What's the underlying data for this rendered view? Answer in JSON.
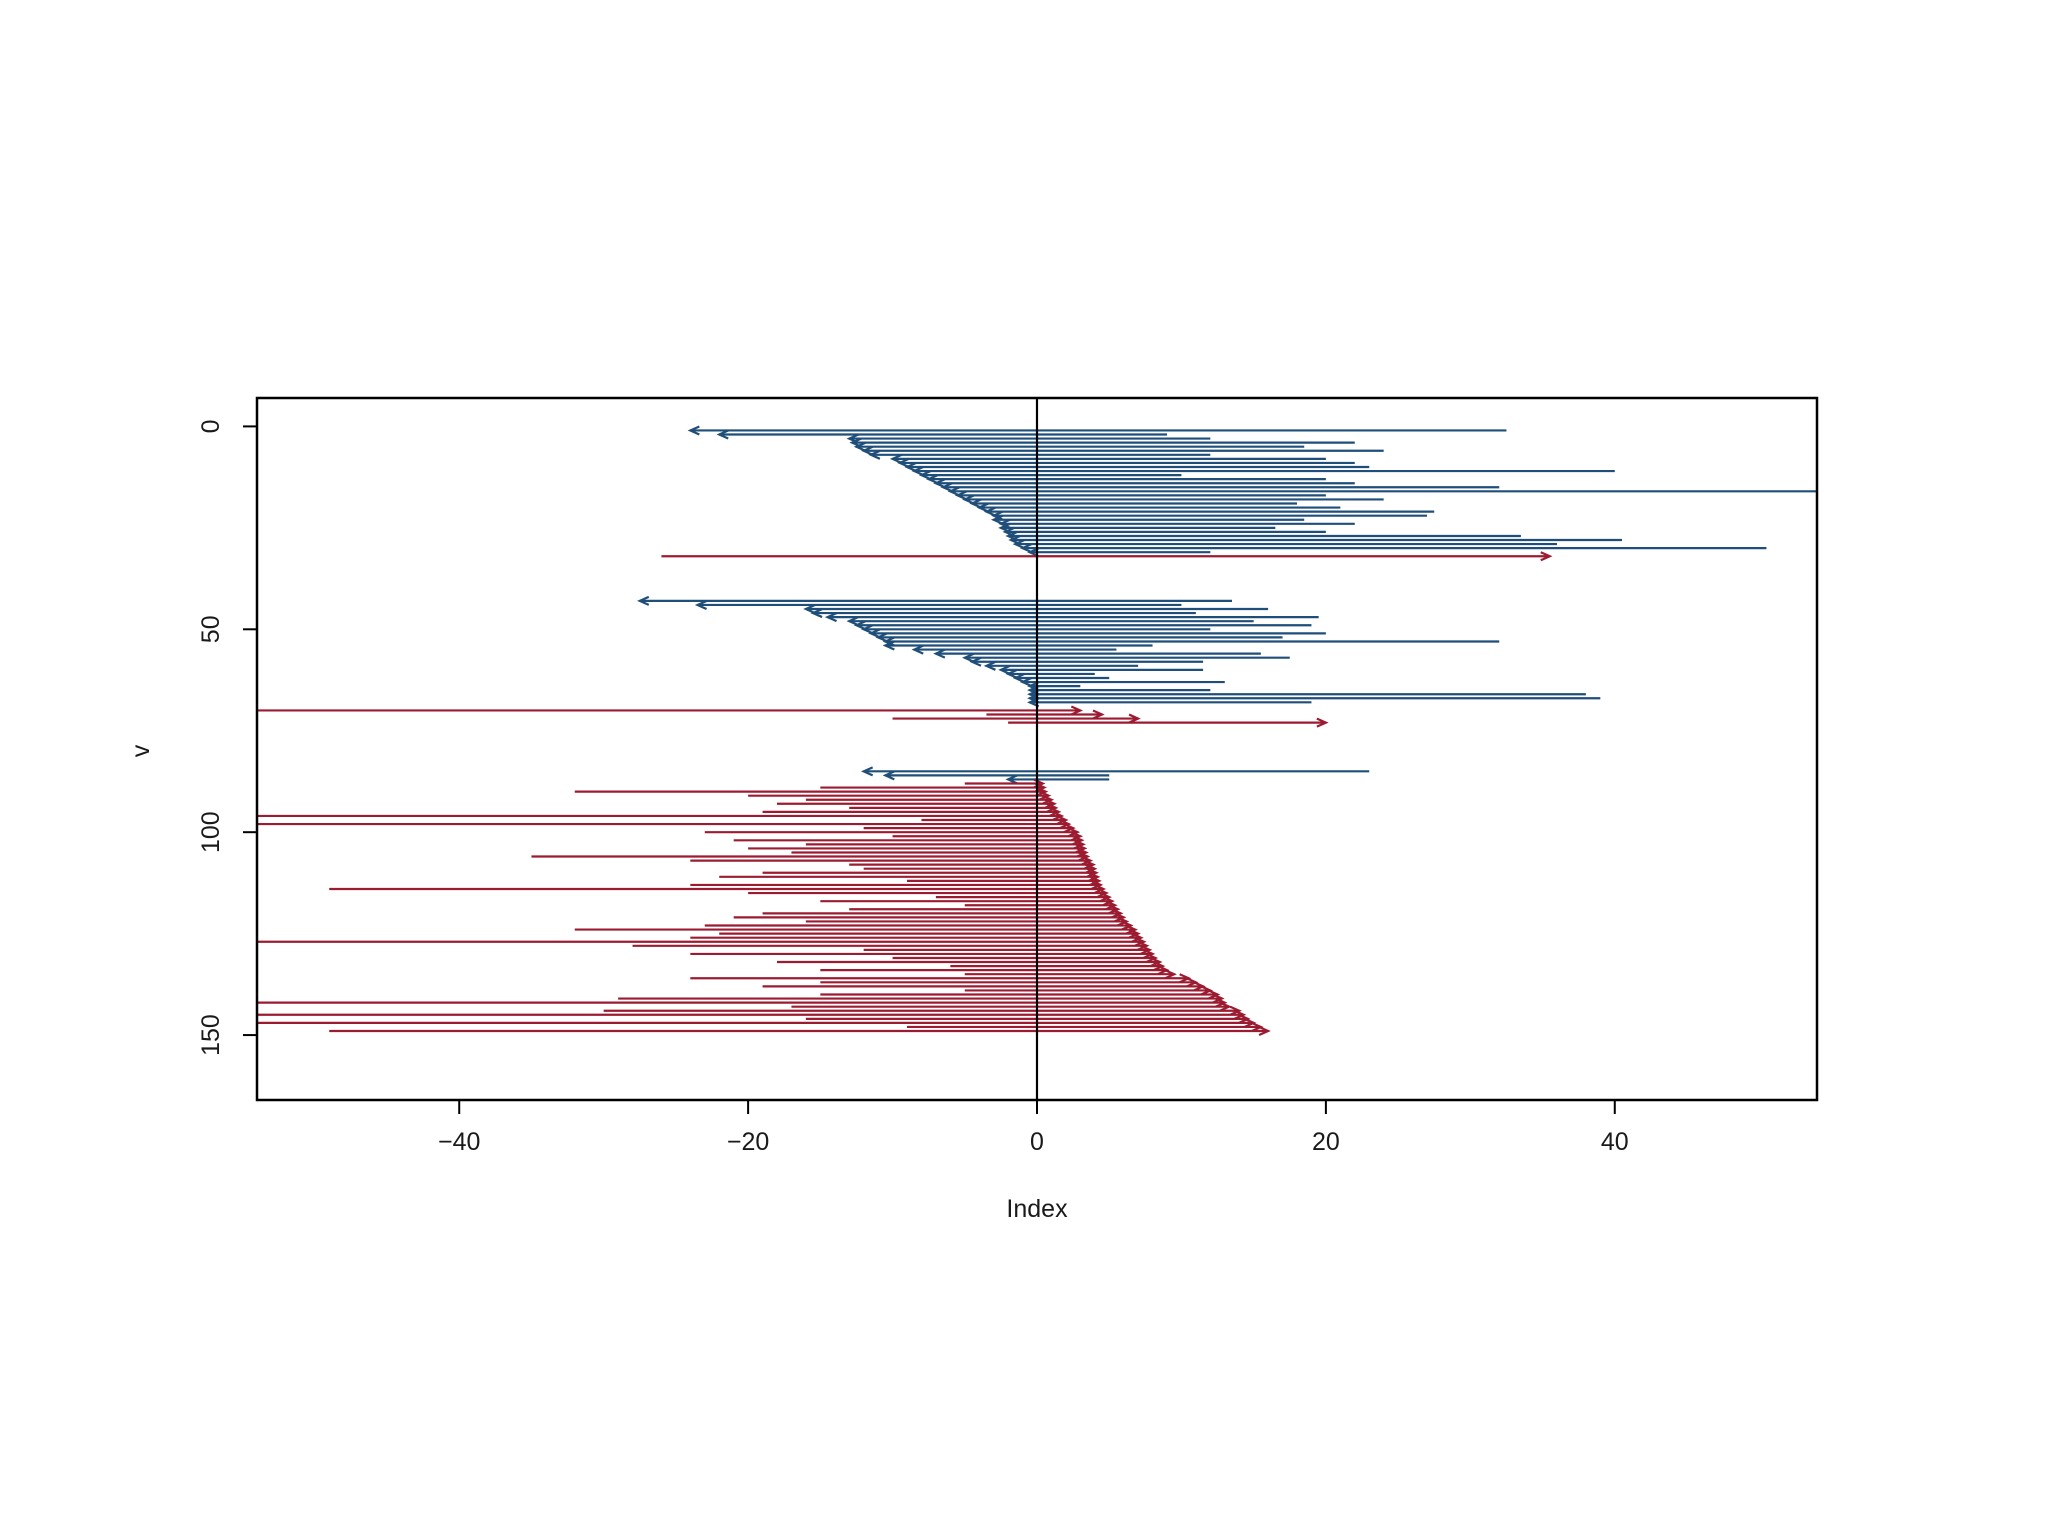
{
  "chart_data": {
    "type": "segment-arrows",
    "xlabel": "Index",
    "ylabel": "v",
    "xlim": [
      -54,
      54
    ],
    "ylim": [
      166,
      -7
    ],
    "y_reversed": true,
    "x_ticks": [
      -40,
      -20,
      0,
      20,
      40
    ],
    "x_tick_labels": [
      "−40",
      "−20",
      "0",
      "20",
      "40"
    ],
    "y_ticks": [
      0,
      50,
      100,
      150
    ],
    "y_tick_labels": [
      "0",
      "50",
      "100",
      "150"
    ],
    "zero_line": 0,
    "colors": {
      "blue": "#1f4e79",
      "red": "#9b1b30",
      "axis": "#000000"
    },
    "arrows": {
      "blue": [
        [
          1,
          -24,
          32.5
        ],
        [
          2,
          -22,
          9
        ],
        [
          3,
          -13,
          12
        ],
        [
          4,
          -12.8,
          22
        ],
        [
          5,
          -12.5,
          18.5
        ],
        [
          6,
          -12,
          24
        ],
        [
          7,
          -11.5,
          12
        ],
        [
          8,
          -10,
          20
        ],
        [
          9,
          -9.5,
          22
        ],
        [
          10,
          -9,
          23
        ],
        [
          11,
          -8.5,
          40
        ],
        [
          12,
          -8,
          10
        ],
        [
          13,
          -7.5,
          20
        ],
        [
          14,
          -7,
          22
        ],
        [
          15,
          -6.5,
          32
        ],
        [
          16,
          -6,
          54
        ],
        [
          17,
          -5.5,
          20
        ],
        [
          18,
          -5,
          24
        ],
        [
          19,
          -4.5,
          18
        ],
        [
          20,
          -4,
          21
        ],
        [
          21,
          -3.5,
          27.5
        ],
        [
          22,
          -3,
          27
        ],
        [
          23,
          -3,
          18.5
        ],
        [
          24,
          -2.5,
          22
        ],
        [
          25,
          -2.5,
          16.5
        ],
        [
          26,
          -2.2,
          20
        ],
        [
          27,
          -2,
          33.5
        ],
        [
          28,
          -1.8,
          40.5
        ],
        [
          29,
          -1.5,
          36
        ],
        [
          30,
          -1,
          50.5
        ],
        [
          31,
          -0.5,
          12
        ],
        [
          43,
          -27.5,
          13.5
        ],
        [
          44,
          -23.5,
          10
        ],
        [
          45,
          -16,
          16
        ],
        [
          46,
          -15.5,
          11
        ],
        [
          47,
          -14.5,
          19.5
        ],
        [
          48,
          -13,
          15
        ],
        [
          49,
          -12.5,
          19
        ],
        [
          50,
          -12,
          12
        ],
        [
          51,
          -11.5,
          20
        ],
        [
          52,
          -11,
          17
        ],
        [
          53,
          -10.5,
          32
        ],
        [
          54,
          -10.5,
          8
        ],
        [
          55,
          -8.5,
          5.5
        ],
        [
          56,
          -7,
          15.5
        ],
        [
          57,
          -5,
          17.5
        ],
        [
          58,
          -4.5,
          11.5
        ],
        [
          59,
          -3.5,
          7
        ],
        [
          60,
          -2.5,
          11.5
        ],
        [
          61,
          -2,
          4
        ],
        [
          62,
          -1.5,
          5
        ],
        [
          63,
          -1,
          13
        ],
        [
          64,
          -0.5,
          3
        ],
        [
          65,
          -0.5,
          12
        ],
        [
          66,
          -0.5,
          38
        ],
        [
          67,
          -0.5,
          39
        ],
        [
          68,
          -0.5,
          19
        ],
        [
          85,
          -12,
          23
        ],
        [
          86,
          -10.5,
          5
        ],
        [
          87,
          -2,
          5
        ]
      ],
      "red": [
        [
          32,
          -26,
          35.5
        ],
        [
          70,
          -54,
          3
        ],
        [
          71,
          -3.5,
          4.5
        ],
        [
          72,
          -10,
          7
        ],
        [
          73,
          -2,
          20
        ],
        [
          88,
          -5,
          0.4
        ],
        [
          89,
          -15,
          0.5
        ],
        [
          90,
          -32,
          0.6
        ],
        [
          91,
          -20,
          0.8
        ],
        [
          92,
          -16,
          1
        ],
        [
          93,
          -18,
          1.2
        ],
        [
          94,
          -13,
          1.3
        ],
        [
          95,
          -19,
          1.5
        ],
        [
          96,
          -54,
          1.7
        ],
        [
          97,
          -8,
          2
        ],
        [
          98,
          -54,
          2.2
        ],
        [
          99,
          -12,
          2.5
        ],
        [
          100,
          -23,
          2.8
        ],
        [
          101,
          -10,
          3
        ],
        [
          102,
          -21,
          3.1
        ],
        [
          103,
          -16,
          3.2
        ],
        [
          104,
          -20,
          3.3
        ],
        [
          105,
          -17,
          3.4
        ],
        [
          106,
          -35,
          3.5
        ],
        [
          107,
          -24,
          3.7
        ],
        [
          108,
          -13,
          3.9
        ],
        [
          109,
          -12,
          4
        ],
        [
          110,
          -19,
          4.1
        ],
        [
          111,
          -22,
          4.2
        ],
        [
          112,
          -9,
          4.3
        ],
        [
          113,
          -24,
          4.4
        ],
        [
          114,
          -49,
          4.6
        ],
        [
          115,
          -20,
          4.8
        ],
        [
          116,
          -7,
          5
        ],
        [
          117,
          -15,
          5.2
        ],
        [
          118,
          -5,
          5.4
        ],
        [
          119,
          -13,
          5.6
        ],
        [
          120,
          -19,
          5.8
        ],
        [
          121,
          -21,
          6
        ],
        [
          122,
          -16,
          6.2
        ],
        [
          123,
          -23,
          6.5
        ],
        [
          124,
          -32,
          6.8
        ],
        [
          125,
          -22,
          7
        ],
        [
          126,
          -24,
          7.2
        ],
        [
          127,
          -54,
          7.4
        ],
        [
          128,
          -28,
          7.6
        ],
        [
          129,
          -12,
          7.8
        ],
        [
          130,
          -24,
          8
        ],
        [
          131,
          -10,
          8.2
        ],
        [
          132,
          -18,
          8.5
        ],
        [
          133,
          -6,
          8.7
        ],
        [
          134,
          -15,
          9
        ],
        [
          135,
          -5,
          9.5
        ],
        [
          136,
          -24,
          10.5
        ],
        [
          137,
          -15,
          11
        ],
        [
          138,
          -19,
          11.5
        ],
        [
          139,
          -5,
          12
        ],
        [
          140,
          -15,
          12.5
        ],
        [
          141,
          -29,
          12.8
        ],
        [
          142,
          -54,
          13
        ],
        [
          143,
          -17,
          13.3
        ],
        [
          144,
          -30,
          14
        ],
        [
          145,
          -54,
          14.3
        ],
        [
          146,
          -16,
          14.6
        ],
        [
          147,
          -54,
          15
        ],
        [
          148,
          -9,
          15.5
        ],
        [
          149,
          -49,
          16
        ]
      ]
    }
  }
}
